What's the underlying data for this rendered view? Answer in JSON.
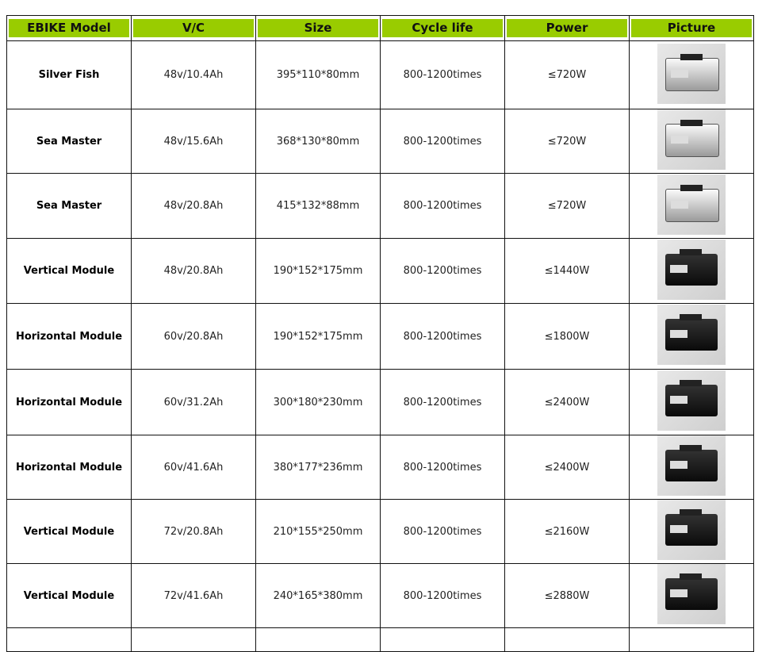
{
  "headers": [
    "EBIKE Model",
    "V/C",
    "Size",
    "Cycle life",
    "Power",
    "Picture"
  ],
  "header_color": "#99cc00",
  "rows": [
    {
      "model": "Silver Fish",
      "vc": "48v/10.4Ah",
      "size": "395*110*80mm",
      "cycle": "800-1200times",
      "power": "≤720W",
      "picture": "silver-battery-photo"
    },
    {
      "model": "Sea Master",
      "vc": "48v/15.6Ah",
      "size": "368*130*80mm",
      "cycle": "800-1200times",
      "power": "≤720W",
      "picture": "silver-battery-photo"
    },
    {
      "model": "Sea Master",
      "vc": "48v/20.8Ah",
      "size": "415*132*88mm",
      "cycle": "800-1200times",
      "power": "≤720W",
      "picture": "silver-battery-photo"
    },
    {
      "model": "Vertical Module",
      "vc": "48v/20.8Ah",
      "size": "190*152*175mm",
      "cycle": "800-1200times",
      "power": "≤1440W",
      "picture": "black-battery-photo"
    },
    {
      "model": "Horizontal Module",
      "vc": "60v/20.8Ah",
      "size": "190*152*175mm",
      "cycle": "800-1200times",
      "power": "≤1800W",
      "picture": "black-battery-photo"
    },
    {
      "model": "Horizontal Module",
      "vc": "60v/31.2Ah",
      "size": "300*180*230mm",
      "cycle": "800-1200times",
      "power": "≤2400W",
      "picture": "black-battery-photo"
    },
    {
      "model": "Horizontal Module",
      "vc": "60v/41.6Ah",
      "size": "380*177*236mm",
      "cycle": "800-1200times",
      "power": "≤2400W",
      "picture": "black-battery-photo"
    },
    {
      "model": "Vertical Module",
      "vc": "72v/20.8Ah",
      "size": "210*155*250mm",
      "cycle": "800-1200times",
      "power": "≤2160W",
      "picture": "black-battery-photo"
    },
    {
      "model": "Vertical Module",
      "vc": "72v/41.6Ah",
      "size": "240*165*380mm",
      "cycle": "800-1200times",
      "power": "≤2880W",
      "picture": "black-battery-photo"
    }
  ]
}
